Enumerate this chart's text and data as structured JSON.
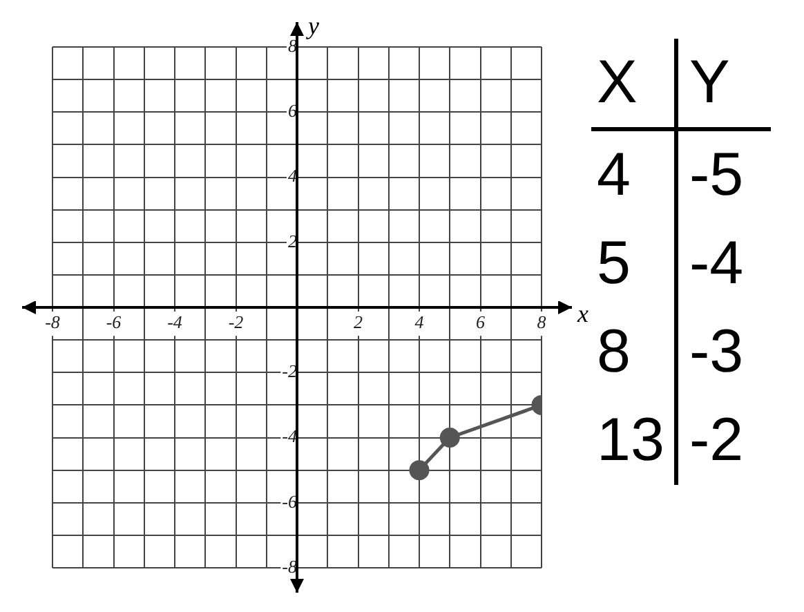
{
  "chart_data": {
    "type": "line",
    "xlabel": "x",
    "ylabel": "y",
    "x": [
      4,
      5,
      8
    ],
    "series": [
      {
        "color": "#555555",
        "values": [
          -5,
          -4,
          -3
        ]
      }
    ],
    "xlim": [
      -8,
      8
    ],
    "ylim": [
      -8,
      8
    ],
    "xticks": [
      -8,
      {
        "value": -7,
        "label": null
      },
      -6,
      {
        "value": -5,
        "label": null
      },
      -4,
      {
        "value": -3,
        "label": null
      },
      -2,
      {
        "value": -1,
        "label": null
      },
      {
        "value": 0,
        "label": null
      },
      {
        "value": 1,
        "label": null
      },
      2,
      {
        "value": 3,
        "label": null
      },
      4,
      {
        "value": 5,
        "label": null
      },
      6,
      {
        "value": 7,
        "label": null
      },
      8
    ],
    "yticks": [
      -8,
      {
        "value": -7,
        "label": null
      },
      -6,
      {
        "value": -5,
        "label": null
      },
      -4,
      {
        "value": -3,
        "label": null
      },
      -2,
      {
        "value": -1,
        "label": null
      },
      {
        "value": 0,
        "label": null
      },
      {
        "value": 1,
        "label": null
      },
      2,
      {
        "value": 3,
        "label": null
      },
      4,
      {
        "value": 5,
        "label": null
      },
      6,
      {
        "value": 7,
        "label": null
      },
      8
    ],
    "grid": true,
    "legend": false,
    "marker": "circle",
    "line_style": "solid",
    "annotations": [
      "X",
      "Y",
      "4",
      "-5",
      "5",
      "-4",
      "8",
      "-3",
      "13",
      "-2"
    ]
  }
}
